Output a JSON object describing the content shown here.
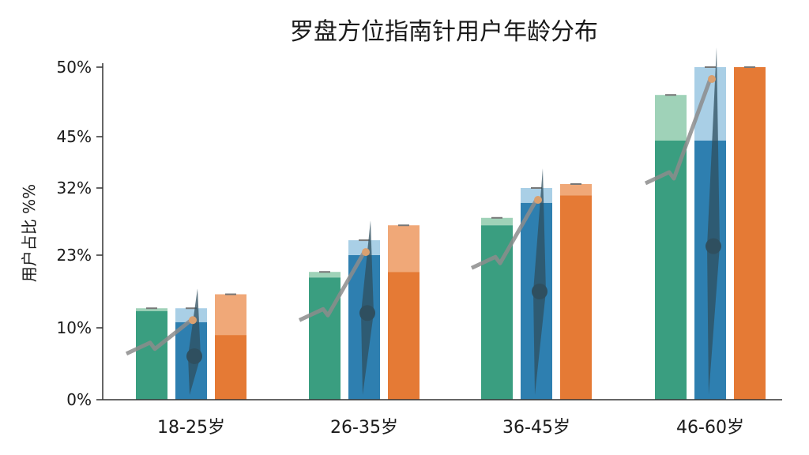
{
  "chart_data": {
    "type": "bar",
    "title": "罗盘方位指南针用户年龄分布",
    "xlabel": "",
    "ylabel": "用户占比 %%",
    "y_ticks": [
      "0%",
      "10%",
      "23%",
      "32%",
      "45%",
      "50%"
    ],
    "categories": [
      "18-25岁",
      "26-35岁",
      "36-45岁",
      "46-60岁"
    ],
    "series": [
      {
        "values": [
          13,
          19,
          27,
          44
        ],
        "upper": [
          13.5,
          20,
          28,
          48
        ]
      },
      {
        "values": [
          11,
          23,
          30,
          44
        ],
        "upper": [
          13.5,
          25,
          32,
          50
        ]
      },
      {
        "values": [
          9,
          20,
          31,
          50
        ],
        "upper": [
          16,
          27,
          33,
          51
        ]
      }
    ],
    "colors": {
      "series": [
        "#3a9e80",
        "#2e7fb0",
        "#e57a35"
      ],
      "series_light": [
        "#9fd2b8",
        "#a9cfe6",
        "#f0a878"
      ],
      "axis": "#333333",
      "compass": "#8c8c8c",
      "compass_dark": "#2f4f5f"
    },
    "legend": "none",
    "grid": false,
    "decoration": "compass-needle-icons"
  }
}
